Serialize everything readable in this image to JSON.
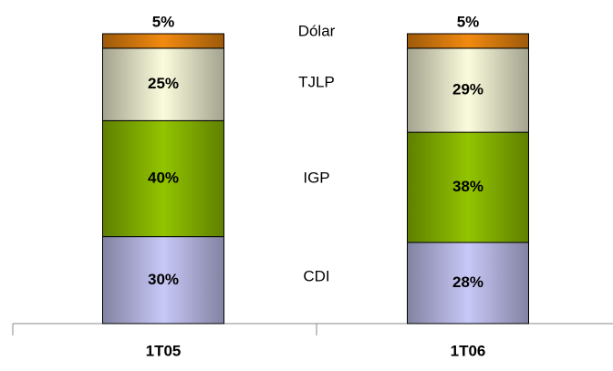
{
  "chart_data": {
    "type": "stacked_bar",
    "categories": [
      "1T05",
      "1T06"
    ],
    "series": [
      {
        "name": "CDI",
        "color": "#c8c8f8",
        "values": [
          30,
          28
        ],
        "value_labels": [
          "30%",
          "28%"
        ]
      },
      {
        "name": "IGP",
        "color": "#92c400",
        "values": [
          40,
          38
        ],
        "value_labels": [
          "40%",
          "38%"
        ]
      },
      {
        "name": "TJLP",
        "color": "#fbfbdc",
        "values": [
          25,
          29
        ],
        "value_labels": [
          "25%",
          "29%"
        ]
      },
      {
        "name": "Dólar",
        "color": "#f28a10",
        "values": [
          5,
          5
        ],
        "value_labels": [
          "5%",
          "5%"
        ]
      }
    ],
    "ylim": [
      0,
      100
    ]
  }
}
